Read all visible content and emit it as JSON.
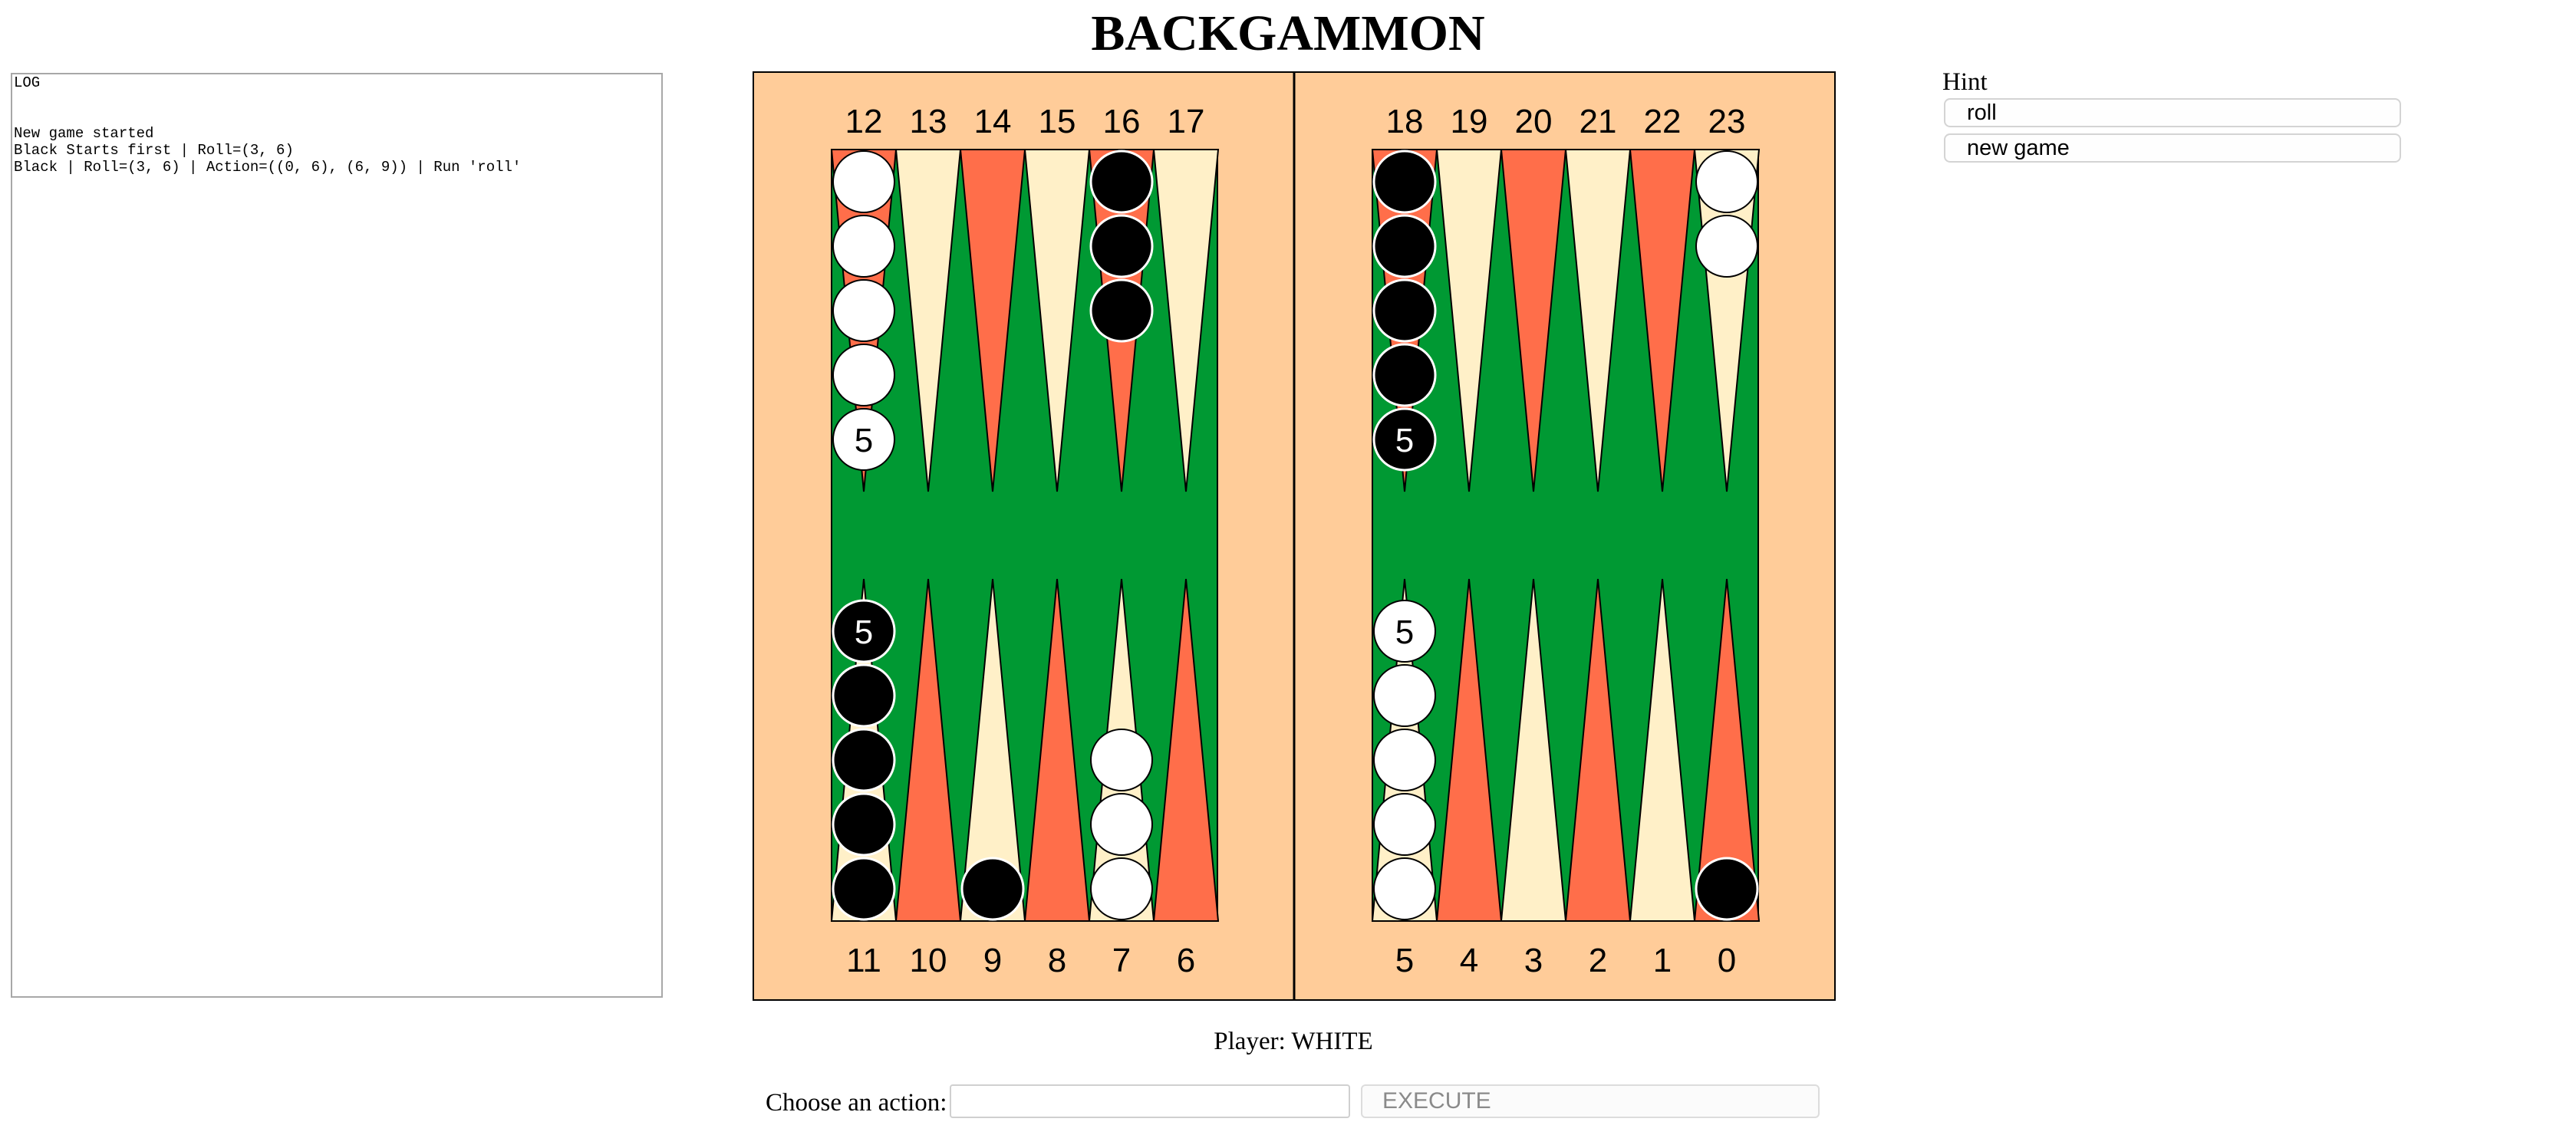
{
  "title": "BACKGAMMON",
  "log": {
    "heading": "LOG",
    "lines": [
      "New game started",
      "Black Starts first | Roll=(3, 6)",
      "Black | Roll=(3, 6) | Action=((0, 6), (6, 9)) | Run 'roll'"
    ]
  },
  "hint": {
    "label": "Hint",
    "buttons": [
      "roll",
      "new game"
    ]
  },
  "player": "Player: WHITE",
  "action": {
    "label": "Choose an action:",
    "input_value": "",
    "execute_label": "EXECUTE"
  },
  "colors": {
    "felt": "#009933",
    "frame": "#ffcc99",
    "point_red": "#ff6e4a",
    "point_cream": "#fff0c8",
    "white_checker": "#ffffff",
    "black_checker": "#000000"
  },
  "board": {
    "left_top_labels": [
      "12",
      "13",
      "14",
      "15",
      "16",
      "17"
    ],
    "right_top_labels": [
      "18",
      "19",
      "20",
      "21",
      "22",
      "23"
    ],
    "left_bottom_labels": [
      "11",
      "10",
      "9",
      "8",
      "7",
      "6"
    ],
    "right_bottom_labels": [
      "5",
      "4",
      "3",
      "2",
      "1",
      "0"
    ],
    "points": [
      {
        "point": 0,
        "color": "black",
        "count": 1
      },
      {
        "point": 5,
        "color": "white",
        "count": 5
      },
      {
        "point": 7,
        "color": "white",
        "count": 3
      },
      {
        "point": 9,
        "color": "black",
        "count": 1
      },
      {
        "point": 11,
        "color": "black",
        "count": 5
      },
      {
        "point": 12,
        "color": "white",
        "count": 5
      },
      {
        "point": 16,
        "color": "black",
        "count": 3
      },
      {
        "point": 18,
        "color": "black",
        "count": 5
      },
      {
        "point": 23,
        "color": "white",
        "count": 2
      }
    ]
  }
}
